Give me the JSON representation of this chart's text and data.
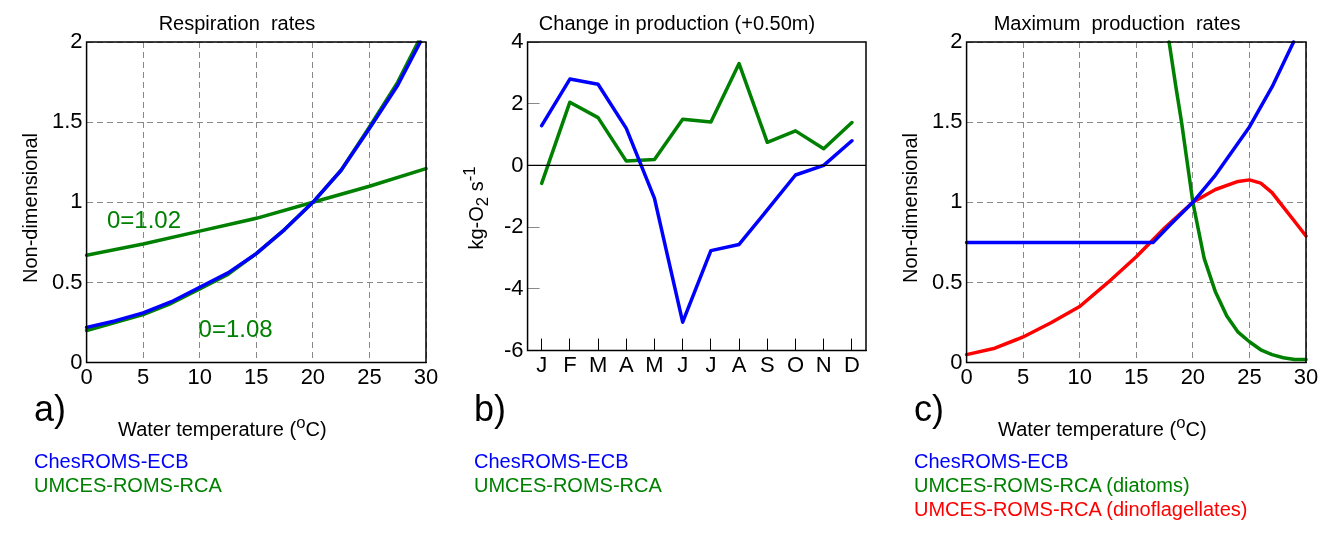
{
  "chart_data": [
    {
      "type": "line",
      "title": "Respiration  rates",
      "xlabel": "Water temperature ($^{o}$C)",
      "ylabel": "Non-dimensional",
      "xlim": [
        0,
        30
      ],
      "ylim": [
        0,
        2
      ],
      "xticks": [
        0,
        5,
        10,
        15,
        20,
        25,
        30
      ],
      "yticks": [
        0,
        0.5,
        1,
        1.5,
        2
      ],
      "grid": true,
      "legend": "bottom",
      "marker": "none",
      "series": [
        {
          "name": "ChesROMS-ECB",
          "color": "#0000ff",
          "x": [
            0,
            2.5,
            5,
            7.5,
            10,
            12.5,
            15,
            17.5,
            20,
            22.5,
            25,
            27.5,
            29.5
          ],
          "values": [
            0.22,
            0.26,
            0.31,
            0.38,
            0.47,
            0.56,
            0.68,
            0.83,
            1.0,
            1.2,
            1.46,
            1.73,
            2.0
          ]
        },
        {
          "name": "UMCES-ROMS-RCA",
          "color": "#008000",
          "x": [
            0,
            2.5,
            5,
            7.5,
            10,
            12.5,
            15,
            17.5,
            20,
            22.5,
            25,
            27.5,
            29.3
          ],
          "values": [
            0.2,
            0.25,
            0.3,
            0.37,
            0.46,
            0.55,
            0.68,
            0.83,
            1.0,
            1.2,
            1.47,
            1.75,
            2.0
          ]
        },
        {
          "color": "#008000",
          "x": [
            0,
            5,
            10,
            15,
            20,
            25,
            30
          ],
          "values": [
            0.67,
            0.74,
            0.82,
            0.9,
            1.0,
            1.1,
            1.21
          ]
        }
      ],
      "annotations": [
        "0=1.02",
        "0=1.08",
        "a)"
      ]
    },
    {
      "type": "line",
      "title": "Change in production (+0.50m)",
      "ylabel": "kg-O$_{2}$ s$^{-1}$",
      "categories": [
        "J",
        "F",
        "M",
        "A",
        "M",
        "J",
        "J",
        "A",
        "S",
        "O",
        "N",
        "D"
      ],
      "ylim": [
        -6,
        4
      ],
      "yticks": [
        -6,
        -4,
        -2,
        0,
        2,
        4
      ],
      "grid": false,
      "legend": "bottom",
      "marker": "none",
      "series": [
        {
          "name": "ChesROMS-ECB",
          "color": "#0000ff",
          "values": [
            1.29,
            2.8,
            2.63,
            1.2,
            -1.07,
            -5.08,
            -2.76,
            -2.56,
            -1.44,
            -0.31,
            0.0,
            0.8
          ]
        },
        {
          "name": "UMCES-ROMS-RCA",
          "color": "#008000",
          "values": [
            -0.58,
            2.05,
            1.55,
            0.14,
            0.19,
            1.5,
            1.41,
            3.3,
            0.75,
            1.12,
            0.54,
            1.39
          ]
        }
      ],
      "ref_lines": [
        {
          "axis": "y",
          "value": 0
        }
      ],
      "annotations": [
        "b)"
      ]
    },
    {
      "type": "line",
      "title": "Maximum  production  rates",
      "xlabel": "Water temperature ($^{o}$C)",
      "ylabel": "Non-dimensional",
      "xlim": [
        0,
        30
      ],
      "ylim": [
        0,
        2
      ],
      "xticks": [
        0,
        5,
        10,
        15,
        20,
        25,
        30
      ],
      "yticks": [
        0,
        0.5,
        1,
        1.5,
        2
      ],
      "grid": true,
      "legend": "bottom",
      "marker": "none",
      "series": [
        {
          "name": "ChesROMS-ECB",
          "color": "#0000ff",
          "x": [
            0,
            16.5,
            18,
            20,
            22,
            24,
            25,
            27,
            28.9
          ],
          "values": [
            0.75,
            0.75,
            0.86,
            1.0,
            1.17,
            1.37,
            1.47,
            1.72,
            2.0
          ]
        },
        {
          "name": "UMCES-ROMS-RCA (diatoms)",
          "color": "#008000",
          "x": [
            17.9,
            18.5,
            19,
            19.5,
            20,
            21,
            22,
            23,
            24,
            25,
            26,
            27,
            28,
            29,
            30
          ],
          "values": [
            2.0,
            1.72,
            1.5,
            1.25,
            1.0,
            0.65,
            0.44,
            0.29,
            0.19,
            0.13,
            0.08,
            0.05,
            0.03,
            0.02,
            0.02
          ]
        },
        {
          "name": "UMCES-ROMS-RCA (dinoflagellates)",
          "color": "#ff0000",
          "x": [
            0,
            2.5,
            5,
            7.5,
            10,
            12.5,
            15,
            17.5,
            20,
            22,
            24,
            25,
            26,
            27,
            28,
            29,
            30
          ],
          "values": [
            0.05,
            0.09,
            0.16,
            0.25,
            0.35,
            0.5,
            0.66,
            0.84,
            1.0,
            1.08,
            1.13,
            1.14,
            1.12,
            1.06,
            0.97,
            0.88,
            0.79
          ]
        }
      ],
      "annotations": [
        "c)"
      ]
    }
  ]
}
